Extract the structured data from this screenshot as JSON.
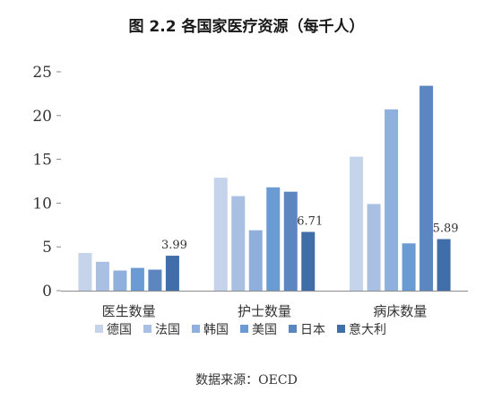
{
  "chart_data": {
    "type": "bar",
    "title": "图 2.2  各国家医疗资源（每千人）",
    "source": "数据来源：OECD",
    "categories": [
      "医生数量",
      "护士数量",
      "病床数量"
    ],
    "series": [
      {
        "name": "德国",
        "color": "#c5d4ea",
        "values": [
          4.3,
          12.9,
          15.3
        ]
      },
      {
        "name": "法国",
        "color": "#a9c0e3",
        "values": [
          3.3,
          10.8,
          9.9
        ]
      },
      {
        "name": "韩国",
        "color": "#8fb0dc",
        "values": [
          2.3,
          6.9,
          20.7
        ]
      },
      {
        "name": "美国",
        "color": "#6a9bd2",
        "values": [
          2.6,
          11.8,
          5.4
        ]
      },
      {
        "name": "日本",
        "color": "#5b86bf",
        "values": [
          2.4,
          11.3,
          23.4
        ]
      },
      {
        "name": "意大利",
        "color": "#3f6ea8",
        "values": [
          3.99,
          6.71,
          5.89
        ]
      }
    ],
    "data_labels": [
      {
        "series": "意大利",
        "category": "医生数量",
        "text": "3.99"
      },
      {
        "series": "意大利",
        "category": "护士数量",
        "text": "6.71"
      },
      {
        "series": "意大利",
        "category": "病床数量",
        "text": "5.89"
      }
    ],
    "ylim": [
      0,
      25
    ],
    "yticks": [
      0,
      5,
      10,
      15,
      20,
      25
    ],
    "grid": false,
    "legend_position": "bottom"
  }
}
